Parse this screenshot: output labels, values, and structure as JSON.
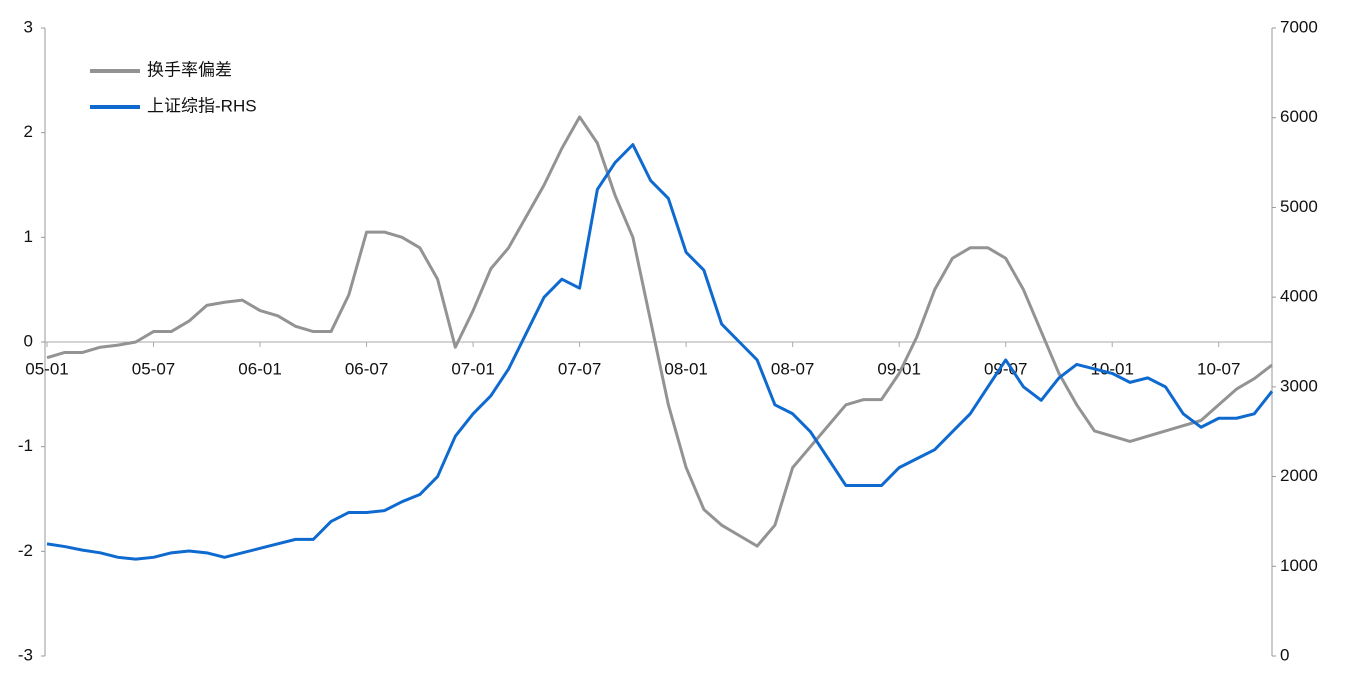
{
  "chart_data": {
    "type": "line",
    "categories": [
      "05-01",
      null,
      null,
      null,
      null,
      null,
      "05-07",
      null,
      null,
      null,
      null,
      null,
      "06-01",
      null,
      null,
      null,
      null,
      null,
      "06-07",
      null,
      null,
      null,
      null,
      null,
      "07-01",
      null,
      null,
      null,
      null,
      null,
      "07-07",
      null,
      null,
      null,
      null,
      null,
      "08-01",
      null,
      null,
      null,
      null,
      null,
      "08-07",
      null,
      null,
      null,
      null,
      null,
      "09-01",
      null,
      null,
      null,
      null,
      null,
      "09-07",
      null,
      null,
      null,
      null,
      null,
      "10-01",
      null,
      null,
      null,
      null,
      null,
      "10-07",
      null,
      null,
      null
    ],
    "series": [
      {
        "name": "换手率偏差",
        "color": "#939393",
        "axis": "y",
        "values": [
          -0.15,
          -0.1,
          -0.1,
          -0.05,
          -0.03,
          0.0,
          0.1,
          0.1,
          0.2,
          0.35,
          0.38,
          0.4,
          0.3,
          0.25,
          0.15,
          0.1,
          0.1,
          0.45,
          1.05,
          1.05,
          1.0,
          0.9,
          0.6,
          -0.05,
          0.3,
          0.7,
          0.9,
          1.2,
          1.5,
          1.85,
          2.15,
          1.9,
          1.4,
          1.0,
          0.2,
          -0.6,
          -1.2,
          -1.6,
          -1.75,
          -1.85,
          -1.95,
          -1.75,
          -1.2,
          -1.0,
          -0.8,
          -0.6,
          -0.55,
          -0.55,
          -0.3,
          0.05,
          0.5,
          0.8,
          0.9,
          0.9,
          0.8,
          0.5,
          0.1,
          -0.3,
          -0.6,
          -0.85,
          -0.9,
          -0.95,
          -0.9,
          -0.85,
          -0.8,
          -0.75,
          -0.6,
          -0.45,
          -0.35,
          -0.22
        ]
      },
      {
        "name": "上证综指-RHS",
        "color": "#0f6ad0",
        "axis": "y2",
        "values": [
          1250,
          1220,
          1180,
          1150,
          1100,
          1080,
          1100,
          1150,
          1170,
          1150,
          1100,
          1150,
          1200,
          1250,
          1300,
          1300,
          1500,
          1600,
          1600,
          1620,
          1720,
          1800,
          2000,
          2450,
          2700,
          2900,
          3200,
          3600,
          4000,
          4200,
          4100,
          5200,
          5500,
          5700,
          5300,
          5100,
          4500,
          4300,
          3700,
          3500,
          3300,
          2800,
          2700,
          2500,
          2200,
          1900,
          1900,
          1900,
          2100,
          2200,
          2300,
          2500,
          2700,
          3000,
          3300,
          3000,
          2850,
          3100,
          3250,
          3200,
          3150,
          3050,
          3100,
          3000,
          2700,
          2550,
          2650,
          2650,
          2700,
          2950
        ]
      }
    ],
    "ylim": [
      -3,
      3
    ],
    "yticks": [
      -3,
      -2,
      -1,
      0,
      1,
      2,
      3
    ],
    "y2lim": [
      0,
      7000
    ],
    "y2ticks": [
      0,
      1000,
      2000,
      3000,
      4000,
      5000,
      6000,
      7000
    ]
  }
}
